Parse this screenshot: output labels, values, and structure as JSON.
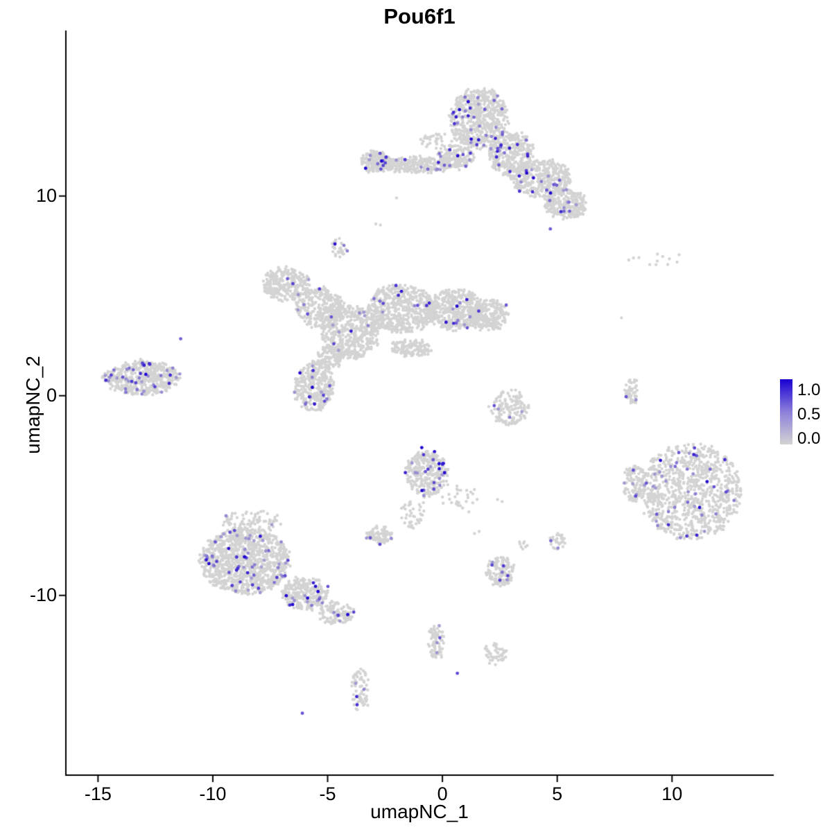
{
  "chart_data": {
    "type": "scatter",
    "title": "Pou6f1",
    "xlabel": "umapNC_1",
    "ylabel": "umapNC_2",
    "xlim": [
      -16.4,
      14.4
    ],
    "ylim": [
      -19.0,
      18.25
    ],
    "x_ticks": [
      -15,
      -10,
      -5,
      0,
      5,
      10
    ],
    "y_ticks": [
      -10,
      0,
      10
    ],
    "grid": false,
    "background": "#FFFFFF",
    "axis_color": "#000000",
    "point_color_low": "#D3D3D3",
    "point_color_high": "#1A00D1",
    "legend": {
      "position": "right",
      "ticks": [
        "1.0",
        "0.5",
        "0.0"
      ],
      "color_high": "#1A00D1",
      "color_mid": "#8C80DB",
      "color_low": "#D3D3D3"
    },
    "clusters": [
      {
        "cx": -2.9,
        "cy": 11.7,
        "rx": 0.6,
        "ry": 0.55,
        "n": 200,
        "frac": 0.05
      },
      {
        "cx": -1.2,
        "cy": 11.55,
        "rx": 1.6,
        "ry": 0.38,
        "n": 260,
        "frac": 0.03
      },
      {
        "cx": 0.6,
        "cy": 11.85,
        "rx": 0.8,
        "ry": 0.5,
        "n": 150,
        "frac": 0.04
      },
      {
        "cx": 1.6,
        "cy": 13.9,
        "rx": 1.25,
        "ry": 1.5,
        "n": 560,
        "frac": 0.045
      },
      {
        "cx": 3.0,
        "cy": 12.1,
        "rx": 1.0,
        "ry": 1.1,
        "n": 340,
        "frac": 0.04
      },
      {
        "cx": 4.3,
        "cy": 10.9,
        "rx": 1.3,
        "ry": 0.95,
        "n": 400,
        "frac": 0.04
      },
      {
        "cx": 5.4,
        "cy": 9.6,
        "rx": 0.95,
        "ry": 0.75,
        "n": 250,
        "frac": 0.04
      },
      {
        "cx": 0.3,
        "cy": 12.7,
        "rx": 1.3,
        "ry": 0.5,
        "n": 70,
        "frac": 0.02
      },
      {
        "cx": -4.5,
        "cy": 7.4,
        "rx": 0.4,
        "ry": 0.5,
        "n": 30,
        "frac": 0.12
      },
      {
        "cx": -6.8,
        "cy": 5.6,
        "rx": 1.0,
        "ry": 0.85,
        "n": 280,
        "frac": 0.02
      },
      {
        "cx": -5.3,
        "cy": 4.4,
        "rx": 1.05,
        "ry": 1.0,
        "n": 300,
        "frac": 0.02
      },
      {
        "cx": -4.0,
        "cy": 3.2,
        "rx": 1.25,
        "ry": 1.35,
        "n": 500,
        "frac": 0.03
      },
      {
        "cx": -1.8,
        "cy": 4.35,
        "rx": 1.45,
        "ry": 1.2,
        "n": 550,
        "frac": 0.025
      },
      {
        "cx": 0.5,
        "cy": 4.3,
        "rx": 1.3,
        "ry": 1.0,
        "n": 420,
        "frac": 0.03
      },
      {
        "cx": 2.0,
        "cy": 4.05,
        "rx": 0.9,
        "ry": 0.75,
        "n": 240,
        "frac": 0.02
      },
      {
        "cx": -1.4,
        "cy": 2.4,
        "rx": 0.95,
        "ry": 0.4,
        "n": 120,
        "frac": 0.01
      },
      {
        "cx": -5.6,
        "cy": 0.45,
        "rx": 0.85,
        "ry": 1.25,
        "n": 320,
        "frac": 0.05
      },
      {
        "cx": -4.9,
        "cy": 1.95,
        "rx": 0.55,
        "ry": 0.6,
        "n": 100,
        "frac": 0.03
      },
      {
        "cx": -13.1,
        "cy": 0.9,
        "rx": 1.65,
        "ry": 0.85,
        "n": 500,
        "frac": 0.05
      },
      {
        "cx": 2.9,
        "cy": -0.6,
        "rx": 0.8,
        "ry": 0.9,
        "n": 140,
        "frac": 0.03
      },
      {
        "cx": 8.25,
        "cy": 0.3,
        "rx": 0.28,
        "ry": 0.7,
        "n": 45,
        "frac": 0.07
      },
      {
        "cx": 10.8,
        "cy": -4.8,
        "rx": 2.2,
        "ry": 2.4,
        "n": 950,
        "frac": 0.035
      },
      {
        "cx": 8.4,
        "cy": -4.4,
        "rx": 0.5,
        "ry": 0.95,
        "n": 110,
        "frac": 0.04
      },
      {
        "cx": 9.3,
        "cy": 6.8,
        "rx": 1.3,
        "ry": 0.35,
        "n": 12,
        "frac": 0
      },
      {
        "cx": -8.6,
        "cy": -8.3,
        "rx": 1.95,
        "ry": 1.65,
        "n": 1100,
        "frac": 0.055
      },
      {
        "cx": -6.0,
        "cy": -9.9,
        "rx": 1.0,
        "ry": 0.8,
        "n": 280,
        "frac": 0.05
      },
      {
        "cx": -4.6,
        "cy": -10.9,
        "rx": 0.75,
        "ry": 0.55,
        "n": 120,
        "frac": 0.06
      },
      {
        "cx": -8.3,
        "cy": -6.3,
        "rx": 1.3,
        "ry": 0.55,
        "n": 80,
        "frac": 0.05
      },
      {
        "cx": -0.7,
        "cy": -3.9,
        "rx": 0.9,
        "ry": 1.15,
        "n": 320,
        "frac": 0.05
      },
      {
        "cx": -1.3,
        "cy": -5.9,
        "rx": 0.55,
        "ry": 0.75,
        "n": 40,
        "frac": 0.02
      },
      {
        "cx": -2.75,
        "cy": -7.0,
        "rx": 0.55,
        "ry": 0.42,
        "n": 90,
        "frac": 0.05
      },
      {
        "cx": 0.8,
        "cy": -5.1,
        "rx": 0.8,
        "ry": 0.8,
        "n": 28,
        "frac": 0
      },
      {
        "cx": 2.55,
        "cy": -8.8,
        "rx": 0.62,
        "ry": 0.72,
        "n": 130,
        "frac": 0.06
      },
      {
        "cx": 5.0,
        "cy": -7.3,
        "rx": 0.32,
        "ry": 0.38,
        "n": 30,
        "frac": 0.1
      },
      {
        "cx": 3.5,
        "cy": -7.4,
        "rx": 0.3,
        "ry": 0.25,
        "n": 8,
        "frac": 0
      },
      {
        "cx": -0.25,
        "cy": -12.3,
        "rx": 0.32,
        "ry": 0.9,
        "n": 70,
        "frac": 0.06
      },
      {
        "cx": 2.3,
        "cy": -12.9,
        "rx": 0.5,
        "ry": 0.5,
        "n": 45,
        "frac": 0.04
      },
      {
        "cx": -3.6,
        "cy": -14.7,
        "rx": 0.38,
        "ry": 1.1,
        "n": 70,
        "frac": 0.07
      }
    ],
    "singles": [
      [
        -2.65,
        11.75,
        1.0
      ],
      [
        -2.45,
        11.95,
        0.75
      ],
      [
        -0.9,
        -2.6,
        1.0
      ],
      [
        11.2,
        -5.6,
        0.95
      ],
      [
        10.95,
        -2.95,
        0.85
      ],
      [
        12.3,
        -3.2,
        0.8
      ],
      [
        0.65,
        -13.9,
        0.65
      ],
      [
        -6.1,
        -15.9,
        0.6
      ],
      [
        -11.4,
        2.85,
        0.55
      ],
      [
        8.0,
        -0.05,
        0.6
      ],
      [
        4.7,
        8.35,
        0.55
      ],
      [
        -2.9,
        8.6,
        0
      ],
      [
        -2.7,
        8.55,
        0
      ],
      [
        7.8,
        3.9,
        0
      ],
      [
        1.4,
        -6.9,
        0
      ],
      [
        1.6,
        -6.8,
        0
      ],
      [
        2.4,
        -5.2,
        0
      ],
      [
        2.6,
        -5.3,
        0
      ],
      [
        -2.0,
        9.9,
        0
      ]
    ]
  }
}
